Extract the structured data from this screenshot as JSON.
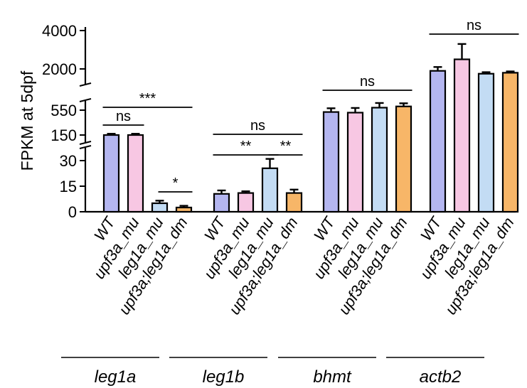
{
  "chart_data": {
    "type": "bar",
    "ylabel": "FPKM at 5dpf",
    "y_axis_broken": true,
    "y_segments": [
      {
        "range": [
          0,
          30
        ],
        "ticks": [
          0,
          15,
          30
        ]
      },
      {
        "range": [
          150,
          550
        ],
        "ticks": [
          150,
          550
        ]
      },
      {
        "range": [
          2000,
          4000
        ],
        "ticks": [
          2000,
          4000
        ]
      }
    ],
    "series": [
      {
        "name": "WT",
        "color": "#b4b6f0"
      },
      {
        "name": "upf3a_mu",
        "color": "#f7c7e3"
      },
      {
        "name": "leg1a_mu",
        "color": "#c3dcf4"
      },
      {
        "name": "upf3a;leg1a_dm",
        "color": "#f7b668"
      }
    ],
    "groups": [
      {
        "gene": "leg1a",
        "bars": [
          {
            "category": "WT",
            "value": 150,
            "error": 20
          },
          {
            "category": "upf3a_mu",
            "value": 150,
            "error": 20
          },
          {
            "category": "leg1a_mu",
            "value": 5,
            "error": 1.5
          },
          {
            "category": "upf3a;leg1a_dm",
            "value": 2.5,
            "error": 1
          }
        ],
        "significance": [
          {
            "from": 0,
            "to": 1,
            "label": "ns"
          },
          {
            "from": 0,
            "to": 3,
            "label": "***"
          },
          {
            "from": 2,
            "to": 3,
            "label": "*"
          }
        ]
      },
      {
        "gene": "leg1b",
        "bars": [
          {
            "category": "WT",
            "value": 10.5,
            "error": 2
          },
          {
            "category": "upf3a_mu",
            "value": 11,
            "error": 1
          },
          {
            "category": "leg1a_mu",
            "value": 25.5,
            "error": 5.5
          },
          {
            "category": "upf3a;leg1a_dm",
            "value": 11,
            "error": 2
          }
        ],
        "significance": [
          {
            "from": 0,
            "to": 3,
            "label": "ns"
          },
          {
            "from": 0,
            "to": 2,
            "label": "**"
          },
          {
            "from": 2,
            "to": 3,
            "label": "**"
          }
        ]
      },
      {
        "gene": "bhmt",
        "bars": [
          {
            "category": "WT",
            "value": 520,
            "error": 60
          },
          {
            "category": "upf3a_mu",
            "value": 510,
            "error": 75
          },
          {
            "category": "leg1a_mu",
            "value": 590,
            "error": 75
          },
          {
            "category": "upf3a;leg1a_dm",
            "value": 610,
            "error": 50
          }
        ],
        "significance": [
          {
            "from": 0,
            "to": 3,
            "label": "ns"
          }
        ]
      },
      {
        "gene": "actb2",
        "bars": [
          {
            "category": "WT",
            "value": 1900,
            "error": 200
          },
          {
            "category": "upf3a_mu",
            "value": 2500,
            "error": 800
          },
          {
            "category": "leg1a_mu",
            "value": 1750,
            "error": 80
          },
          {
            "category": "upf3a;leg1a_dm",
            "value": 1800,
            "error": 70
          }
        ],
        "significance": [
          {
            "from": 0,
            "to": 3,
            "label": "ns"
          }
        ]
      }
    ]
  }
}
